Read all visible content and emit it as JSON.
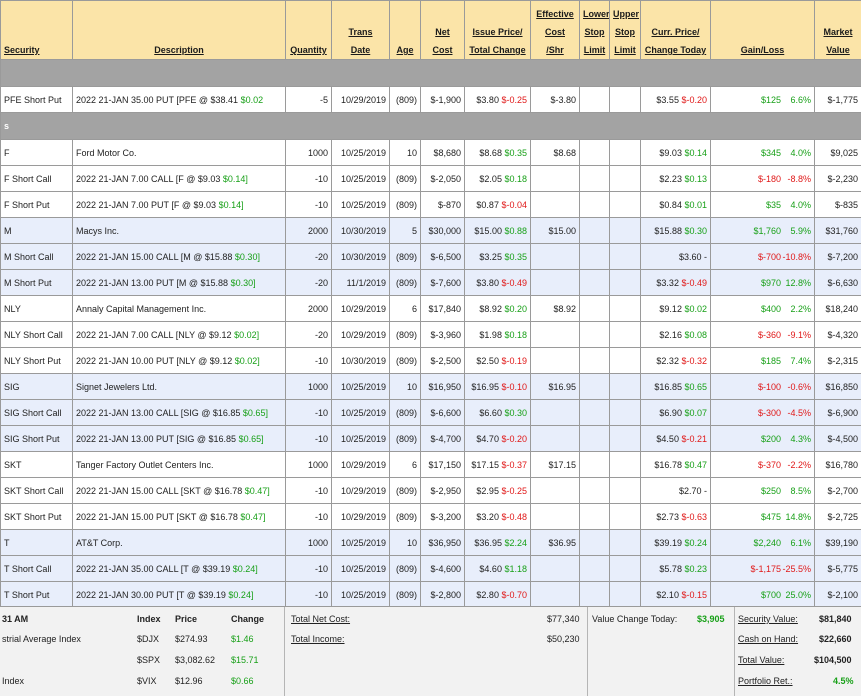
{
  "headers": {
    "security": "Security",
    "description": "Description",
    "quantity": "Quantity",
    "trans_date": [
      "Trans",
      "Date"
    ],
    "age": "Age",
    "net_cost": [
      "Net",
      "Cost"
    ],
    "issue_price": [
      "Issue Price/",
      "Total Change"
    ],
    "effective_cost": [
      "Effective",
      "Cost",
      "/Shr"
    ],
    "lower_stop": [
      "Lower",
      "Stop",
      "Limit"
    ],
    "upper_stop": [
      "Upper",
      "Stop",
      "Limit"
    ],
    "curr_price": [
      "Curr. Price/",
      "Change Today"
    ],
    "gain_loss": "Gain/Loss",
    "market_value": [
      "Market",
      "Value"
    ]
  },
  "band1_label": "",
  "group1": [
    {
      "security": "PFE Short Put",
      "description": "2022 21-JAN 35.00 PUT [PFE @ $38.41",
      "desc_chg": "$0.02",
      "desc_chg_color": "g",
      "qty": "-5",
      "date": "10/29/2019",
      "age": "(809)",
      "net": "$-1,900",
      "issue": "$3.80",
      "tchg": "$-0.25",
      "tchg_color": "red",
      "eff": "$-3.80",
      "curr": "$3.55",
      "ctoday": "$-0.20",
      "ctoday_color": "red",
      "gain": "$125",
      "gain_color": "g",
      "pct": "6.6%",
      "pct_color": "g",
      "mv": "$-1,775",
      "alt": false
    }
  ],
  "band2_label": "s",
  "rows": [
    {
      "security": "F",
      "description": "Ford Motor Co.",
      "desc_chg": "",
      "desc_chg_color": "g",
      "qty": "1000",
      "date": "10/25/2019",
      "age": "10",
      "net": "$8,680",
      "issue": "$8.68",
      "tchg": "$0.35",
      "tchg_color": "g",
      "eff": "$8.68",
      "curr": "$9.03",
      "ctoday": "$0.14",
      "ctoday_color": "g",
      "gain": "$345",
      "gain_color": "g",
      "pct": "4.0%",
      "pct_color": "g",
      "mv": "$9,025",
      "alt": false
    },
    {
      "security": "F Short Call",
      "description": "2022 21-JAN 7.00 CALL [F @ $9.03",
      "desc_chg": "$0.14]",
      "desc_chg_color": "g",
      "qty": "-10",
      "date": "10/25/2019",
      "age": "(809)",
      "net": "$-2,050",
      "issue": "$2.05",
      "tchg": "$0.18",
      "tchg_color": "g",
      "eff": "",
      "curr": "$2.23",
      "ctoday": "$0.13",
      "ctoday_color": "g",
      "gain": "$-180",
      "gain_color": "red",
      "pct": "-8.8%",
      "pct_color": "red",
      "mv": "$-2,230",
      "alt": false
    },
    {
      "security": "F Short Put",
      "description": "2022 21-JAN 7.00 PUT [F @ $9.03",
      "desc_chg": "$0.14]",
      "desc_chg_color": "g",
      "qty": "-10",
      "date": "10/25/2019",
      "age": "(809)",
      "net": "$-870",
      "issue": "$0.87",
      "tchg": "$-0.04",
      "tchg_color": "red",
      "eff": "",
      "curr": "$0.84",
      "ctoday": "$0.01",
      "ctoday_color": "g",
      "gain": "$35",
      "gain_color": "g",
      "pct": "4.0%",
      "pct_color": "g",
      "mv": "$-835",
      "alt": false
    },
    {
      "security": "M",
      "description": "Macys Inc.",
      "desc_chg": "",
      "desc_chg_color": "g",
      "qty": "2000",
      "date": "10/30/2019",
      "age": "5",
      "net": "$30,000",
      "issue": "$15.00",
      "tchg": "$0.88",
      "tchg_color": "g",
      "eff": "$15.00",
      "curr": "$15.88",
      "ctoday": "$0.30",
      "ctoday_color": "g",
      "gain": "$1,760",
      "gain_color": "g",
      "pct": "5.9%",
      "pct_color": "g",
      "mv": "$31,760",
      "alt": true
    },
    {
      "security": "M Short Call",
      "description": "2022 21-JAN 15.00 CALL [M @ $15.88",
      "desc_chg": "$0.30]",
      "desc_chg_color": "g",
      "qty": "-20",
      "date": "10/30/2019",
      "age": "(809)",
      "net": "$-6,500",
      "issue": "$3.25",
      "tchg": "$0.35",
      "tchg_color": "g",
      "eff": "",
      "curr": "$3.60",
      "ctoday": "-",
      "ctoday_color": "blk",
      "gain": "$-700",
      "gain_color": "red",
      "pct": "-10.8%",
      "pct_color": "red",
      "mv": "$-7,200",
      "alt": true
    },
    {
      "security": "M Short Put",
      "description": "2022 21-JAN 13.00 PUT [M @ $15.88",
      "desc_chg": "$0.30]",
      "desc_chg_color": "g",
      "qty": "-20",
      "date": "11/1/2019",
      "age": "(809)",
      "net": "$-7,600",
      "issue": "$3.80",
      "tchg": "$-0.49",
      "tchg_color": "red",
      "eff": "",
      "curr": "$3.32",
      "ctoday": "$-0.49",
      "ctoday_color": "red",
      "gain": "$970",
      "gain_color": "g",
      "pct": "12.8%",
      "pct_color": "g",
      "mv": "$-6,630",
      "alt": true
    },
    {
      "security": "NLY",
      "description": "Annaly Capital Management Inc.",
      "desc_chg": "",
      "desc_chg_color": "g",
      "qty": "2000",
      "date": "10/29/2019",
      "age": "6",
      "net": "$17,840",
      "issue": "$8.92",
      "tchg": "$0.20",
      "tchg_color": "g",
      "eff": "$8.92",
      "curr": "$9.12",
      "ctoday": "$0.02",
      "ctoday_color": "g",
      "gain": "$400",
      "gain_color": "g",
      "pct": "2.2%",
      "pct_color": "g",
      "mv": "$18,240",
      "alt": false
    },
    {
      "security": "NLY Short Call",
      "description": "2022 21-JAN 7.00 CALL [NLY @ $9.12",
      "desc_chg": "$0.02]",
      "desc_chg_color": "g",
      "qty": "-20",
      "date": "10/29/2019",
      "age": "(809)",
      "net": "$-3,960",
      "issue": "$1.98",
      "tchg": "$0.18",
      "tchg_color": "g",
      "eff": "",
      "curr": "$2.16",
      "ctoday": "$0.08",
      "ctoday_color": "g",
      "gain": "$-360",
      "gain_color": "red",
      "pct": "-9.1%",
      "pct_color": "red",
      "mv": "$-4,320",
      "alt": false
    },
    {
      "security": "NLY Short Put",
      "description": "2022 21-JAN 10.00 PUT [NLY @ $9.12",
      "desc_chg": "$0.02]",
      "desc_chg_color": "g",
      "qty": "-10",
      "date": "10/30/2019",
      "age": "(809)",
      "net": "$-2,500",
      "issue": "$2.50",
      "tchg": "$-0.19",
      "tchg_color": "red",
      "eff": "",
      "curr": "$2.32",
      "ctoday": "$-0.32",
      "ctoday_color": "red",
      "gain": "$185",
      "gain_color": "g",
      "pct": "7.4%",
      "pct_color": "g",
      "mv": "$-2,315",
      "alt": false
    },
    {
      "security": "SIG",
      "description": "Signet Jewelers Ltd.",
      "desc_chg": "",
      "desc_chg_color": "g",
      "qty": "1000",
      "date": "10/25/2019",
      "age": "10",
      "net": "$16,950",
      "issue": "$16.95",
      "tchg": "$-0.10",
      "tchg_color": "red",
      "eff": "$16.95",
      "curr": "$16.85",
      "ctoday": "$0.65",
      "ctoday_color": "g",
      "gain": "$-100",
      "gain_color": "red",
      "pct": "-0.6%",
      "pct_color": "red",
      "mv": "$16,850",
      "alt": true
    },
    {
      "security": "SIG Short Call",
      "description": "2022 21-JAN 13.00 CALL [SIG @ $16.85",
      "desc_chg": "$0.65]",
      "desc_chg_color": "g",
      "qty": "-10",
      "date": "10/25/2019",
      "age": "(809)",
      "net": "$-6,600",
      "issue": "$6.60",
      "tchg": "$0.30",
      "tchg_color": "g",
      "eff": "",
      "curr": "$6.90",
      "ctoday": "$0.07",
      "ctoday_color": "g",
      "gain": "$-300",
      "gain_color": "red",
      "pct": "-4.5%",
      "pct_color": "red",
      "mv": "$-6,900",
      "alt": true
    },
    {
      "security": "SIG Short Put",
      "description": "2022 21-JAN 13.00 PUT [SIG @ $16.85",
      "desc_chg": "$0.65]",
      "desc_chg_color": "g",
      "qty": "-10",
      "date": "10/25/2019",
      "age": "(809)",
      "net": "$-4,700",
      "issue": "$4.70",
      "tchg": "$-0.20",
      "tchg_color": "red",
      "eff": "",
      "curr": "$4.50",
      "ctoday": "$-0.21",
      "ctoday_color": "red",
      "gain": "$200",
      "gain_color": "g",
      "pct": "4.3%",
      "pct_color": "g",
      "mv": "$-4,500",
      "alt": true
    },
    {
      "security": "SKT",
      "description": "Tanger Factory Outlet Centers Inc.",
      "desc_chg": "",
      "desc_chg_color": "g",
      "qty": "1000",
      "date": "10/29/2019",
      "age": "6",
      "net": "$17,150",
      "issue": "$17.15",
      "tchg": "$-0.37",
      "tchg_color": "red",
      "eff": "$17.15",
      "curr": "$16.78",
      "ctoday": "$0.47",
      "ctoday_color": "g",
      "gain": "$-370",
      "gain_color": "red",
      "pct": "-2.2%",
      "pct_color": "red",
      "mv": "$16,780",
      "alt": false
    },
    {
      "security": "SKT Short Call",
      "description": "2022 21-JAN 15.00 CALL [SKT @ $16.78",
      "desc_chg": "$0.47]",
      "desc_chg_color": "g",
      "qty": "-10",
      "date": "10/29/2019",
      "age": "(809)",
      "net": "$-2,950",
      "issue": "$2.95",
      "tchg": "$-0.25",
      "tchg_color": "red",
      "eff": "",
      "curr": "$2.70",
      "ctoday": "-",
      "ctoday_color": "blk",
      "gain": "$250",
      "gain_color": "g",
      "pct": "8.5%",
      "pct_color": "g",
      "mv": "$-2,700",
      "alt": false
    },
    {
      "security": "SKT Short Put",
      "description": "2022 21-JAN 15.00 PUT [SKT @ $16.78",
      "desc_chg": "$0.47]",
      "desc_chg_color": "g",
      "qty": "-10",
      "date": "10/29/2019",
      "age": "(809)",
      "net": "$-3,200",
      "issue": "$3.20",
      "tchg": "$-0.48",
      "tchg_color": "red",
      "eff": "",
      "curr": "$2.73",
      "ctoday": "$-0.63",
      "ctoday_color": "red",
      "gain": "$475",
      "gain_color": "g",
      "pct": "14.8%",
      "pct_color": "g",
      "mv": "$-2,725",
      "alt": false
    },
    {
      "security": "T",
      "description": "AT&T Corp.",
      "desc_chg": "",
      "desc_chg_color": "g",
      "qty": "1000",
      "date": "10/25/2019",
      "age": "10",
      "net": "$36,950",
      "issue": "$36.95",
      "tchg": "$2.24",
      "tchg_color": "g",
      "eff": "$36.95",
      "curr": "$39.19",
      "ctoday": "$0.24",
      "ctoday_color": "g",
      "gain": "$2,240",
      "gain_color": "g",
      "pct": "6.1%",
      "pct_color": "g",
      "mv": "$39,190",
      "alt": true
    },
    {
      "security": "T Short Call",
      "description": "2022 21-JAN 35.00 CALL [T @ $39.19",
      "desc_chg": "$0.24]",
      "desc_chg_color": "g",
      "qty": "-10",
      "date": "10/25/2019",
      "age": "(809)",
      "net": "$-4,600",
      "issue": "$4.60",
      "tchg": "$1.18",
      "tchg_color": "g",
      "eff": "",
      "curr": "$5.78",
      "ctoday": "$0.23",
      "ctoday_color": "g",
      "gain": "$-1,175",
      "gain_color": "red",
      "pct": "-25.5%",
      "pct_color": "red",
      "mv": "$-5,775",
      "alt": true
    },
    {
      "security": "T Short Put",
      "description": "2022 21-JAN 30.00 PUT [T @ $39.19",
      "desc_chg": "$0.24]",
      "desc_chg_color": "g",
      "qty": "-10",
      "date": "10/25/2019",
      "age": "(809)",
      "net": "$-2,800",
      "issue": "$2.80",
      "tchg": "$-0.70",
      "tchg_color": "red",
      "eff": "",
      "curr": "$2.10",
      "ctoday": "$-0.15",
      "ctoday_color": "red",
      "gain": "$700",
      "gain_color": "g",
      "pct": "25.0%",
      "pct_color": "g",
      "mv": "$-2,100",
      "alt": true
    }
  ],
  "footer": {
    "time": "31 AM",
    "index_header": "Index",
    "price_header": "Price",
    "change_header": "Change",
    "indices": [
      {
        "name": "strial Average Index",
        "symbol": "$DJX",
        "price": "$274.93",
        "change": "$1.46"
      },
      {
        "name": "",
        "symbol": "$SPX",
        "price": "$3,082.62",
        "change": "$15.71"
      },
      {
        "name": "Index",
        "symbol": "$VIX",
        "price": "$12.96",
        "change": "$0.66"
      }
    ],
    "total_net_cost_label": "Total Net Cost:",
    "total_net_cost": "$77,340",
    "total_income_label": "Total Income:",
    "total_income": "$50,230",
    "value_change_label": "Value Change Today:",
    "value_change": "$3,905",
    "security_value_label": "Security Value:",
    "security_value": "$81,840",
    "cash_label": "Cash on Hand:",
    "cash": "$22,660",
    "total_value_label": "Total Value:",
    "total_value": "$104,500",
    "portfolio_ret_label": "Portfolio Ret.:",
    "portfolio_ret": "4.5%"
  },
  "colors": {
    "header_bg": "#fbe4a8",
    "band_bg": "#a3a3a3",
    "alt_row_bg": "#e8eefb",
    "gain": "#18a018",
    "loss": "#e01818"
  }
}
